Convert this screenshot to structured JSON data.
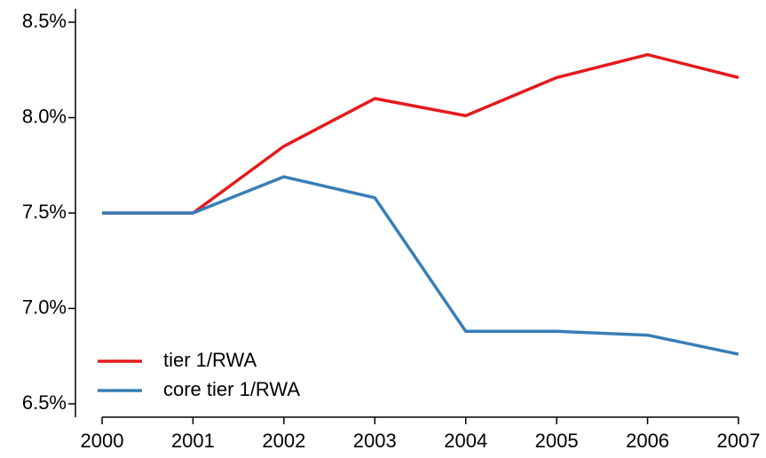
{
  "chart_data": {
    "type": "line",
    "categories": [
      "2000",
      "2001",
      "2002",
      "2003",
      "2004",
      "2005",
      "2006",
      "2007"
    ],
    "series": [
      {
        "name": "tier 1/RWA",
        "color": "#e41a1c",
        "values": [
          7.5,
          7.5,
          7.85,
          8.1,
          8.01,
          8.21,
          8.33,
          8.21
        ]
      },
      {
        "name": "core tier 1/RWA",
        "color": "#377eb8",
        "values": [
          7.5,
          7.5,
          7.69,
          7.58,
          6.88,
          6.88,
          6.86,
          6.76
        ]
      }
    ],
    "ylim": [
      6.43,
      8.57
    ],
    "yticks": [
      {
        "value": 6.5,
        "label": "6.5%"
      },
      {
        "value": 7.0,
        "label": "7.0%"
      },
      {
        "value": 7.5,
        "label": "7.5%"
      },
      {
        "value": 8.0,
        "label": "8.0%"
      },
      {
        "value": 8.5,
        "label": "8.5%"
      }
    ],
    "grid": false,
    "legend": "bottom-left"
  }
}
